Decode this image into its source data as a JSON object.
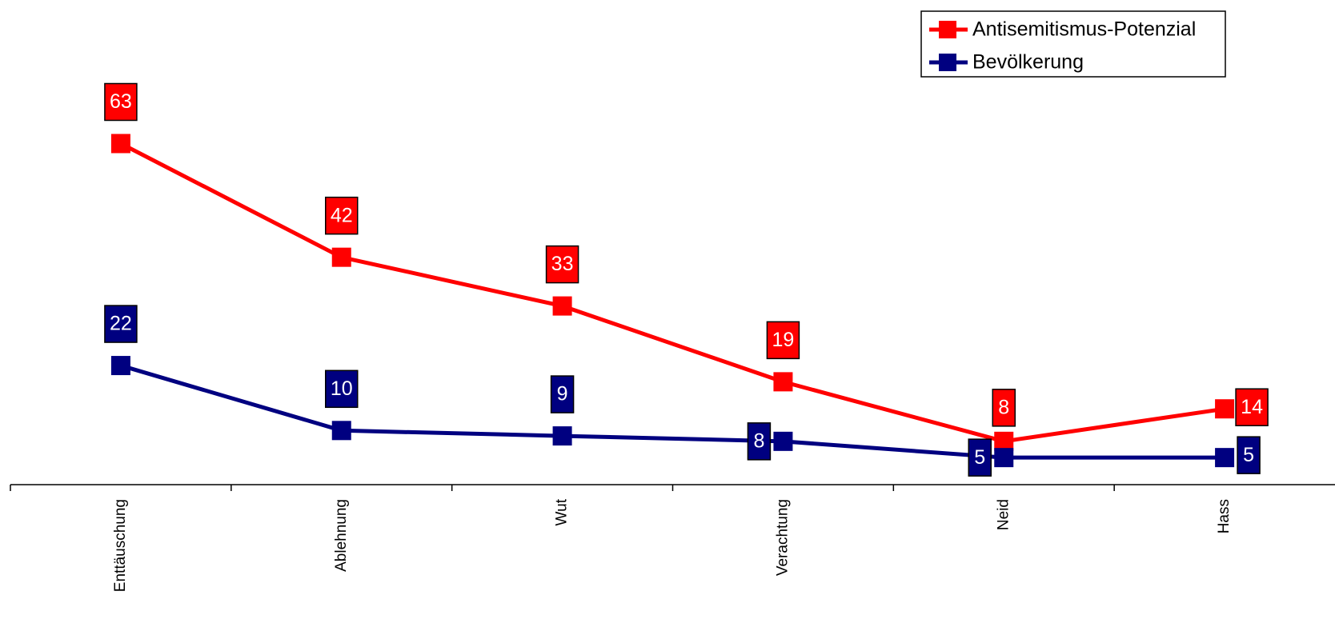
{
  "chart_data": {
    "type": "line",
    "categories": [
      "Enttäuschung",
      "Ablehnung",
      "Wut",
      "Verachtung",
      "Neid",
      "Hass"
    ],
    "series": [
      {
        "name": "Antisemitismus-Potenzial",
        "color": "#ff0000",
        "values": [
          63,
          42,
          33,
          19,
          8,
          14
        ],
        "label_position": "above"
      },
      {
        "name": "Bevölkerung",
        "color": "#000080",
        "values": [
          22,
          10,
          9,
          8,
          5,
          5
        ],
        "label_position": "above"
      }
    ],
    "ylim": [
      0,
      75
    ],
    "grid": false,
    "legend": "top-right",
    "data_labels": true,
    "tick_label_rotation": -90
  }
}
